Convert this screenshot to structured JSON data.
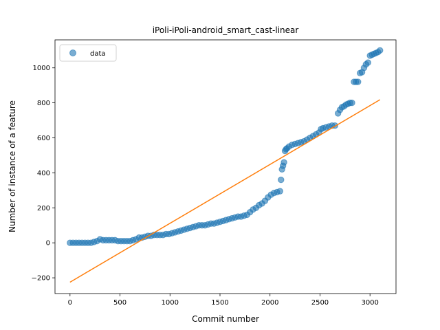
{
  "chart_data": {
    "type": "scatter",
    "title": "iPoli-iPoli-android_smart_cast-linear",
    "xlabel": "Commit number",
    "ylabel": "Number of instance of a feature",
    "xlim": [
      -150,
      3260
    ],
    "ylim": [
      -290,
      1160
    ],
    "xticks": [
      0,
      500,
      1000,
      1500,
      2000,
      2500,
      3000
    ],
    "yticks": [
      -200,
      0,
      200,
      400,
      600,
      800,
      1000
    ],
    "xtick_labels": [
      "0",
      "500",
      "1000",
      "1500",
      "2000",
      "2500",
      "3000"
    ],
    "ytick_labels": [
      "−200",
      "0",
      "200",
      "400",
      "600",
      "800",
      "1000"
    ],
    "grid": false,
    "legend": {
      "position": "top-left",
      "entries": [
        "data"
      ]
    },
    "series": [
      {
        "name": "data",
        "kind": "scatter",
        "color": "#1f77b4",
        "x": [
          0,
          30,
          60,
          90,
          120,
          150,
          180,
          210,
          240,
          270,
          300,
          330,
          360,
          390,
          420,
          450,
          480,
          510,
          540,
          570,
          600,
          630,
          660,
          690,
          720,
          750,
          780,
          810,
          840,
          870,
          900,
          930,
          960,
          990,
          1020,
          1050,
          1080,
          1110,
          1140,
          1170,
          1200,
          1230,
          1260,
          1290,
          1320,
          1350,
          1380,
          1410,
          1440,
          1470,
          1500,
          1530,
          1560,
          1590,
          1620,
          1650,
          1680,
          1710,
          1740,
          1770,
          1800,
          1830,
          1860,
          1890,
          1920,
          1950,
          1980,
          2010,
          2040,
          2070,
          2100,
          2110,
          2120,
          2130,
          2140,
          2150,
          2160,
          2170,
          2190,
          2220,
          2250,
          2280,
          2310,
          2340,
          2370,
          2400,
          2430,
          2460,
          2490,
          2510,
          2530,
          2560,
          2590,
          2620,
          2650,
          2680,
          2700,
          2720,
          2740,
          2760,
          2780,
          2800,
          2820,
          2840,
          2860,
          2880,
          2900,
          2920,
          2940,
          2960,
          2980,
          3000,
          3020,
          3040,
          3060,
          3080,
          3100
        ],
        "y": [
          0,
          0,
          0,
          0,
          0,
          0,
          0,
          0,
          5,
          10,
          20,
          15,
          15,
          15,
          15,
          15,
          10,
          10,
          10,
          10,
          10,
          15,
          20,
          30,
          30,
          35,
          40,
          40,
          45,
          45,
          45,
          45,
          50,
          50,
          55,
          60,
          65,
          70,
          75,
          80,
          85,
          90,
          95,
          100,
          100,
          100,
          105,
          110,
          110,
          115,
          120,
          125,
          130,
          135,
          140,
          145,
          150,
          150,
          155,
          160,
          175,
          190,
          200,
          215,
          225,
          240,
          260,
          275,
          285,
          290,
          295,
          360,
          420,
          440,
          460,
          525,
          535,
          540,
          550,
          560,
          565,
          570,
          575,
          580,
          590,
          600,
          610,
          620,
          630,
          650,
          655,
          660,
          665,
          670,
          670,
          740,
          760,
          775,
          780,
          790,
          795,
          800,
          800,
          920,
          920,
          920,
          970,
          975,
          1000,
          1020,
          1030,
          1070,
          1075,
          1080,
          1085,
          1090,
          1100
        ]
      },
      {
        "name": "",
        "kind": "line",
        "color": "#ff7f0e",
        "x": [
          0,
          3100
        ],
        "y": [
          -225,
          818
        ]
      }
    ]
  }
}
